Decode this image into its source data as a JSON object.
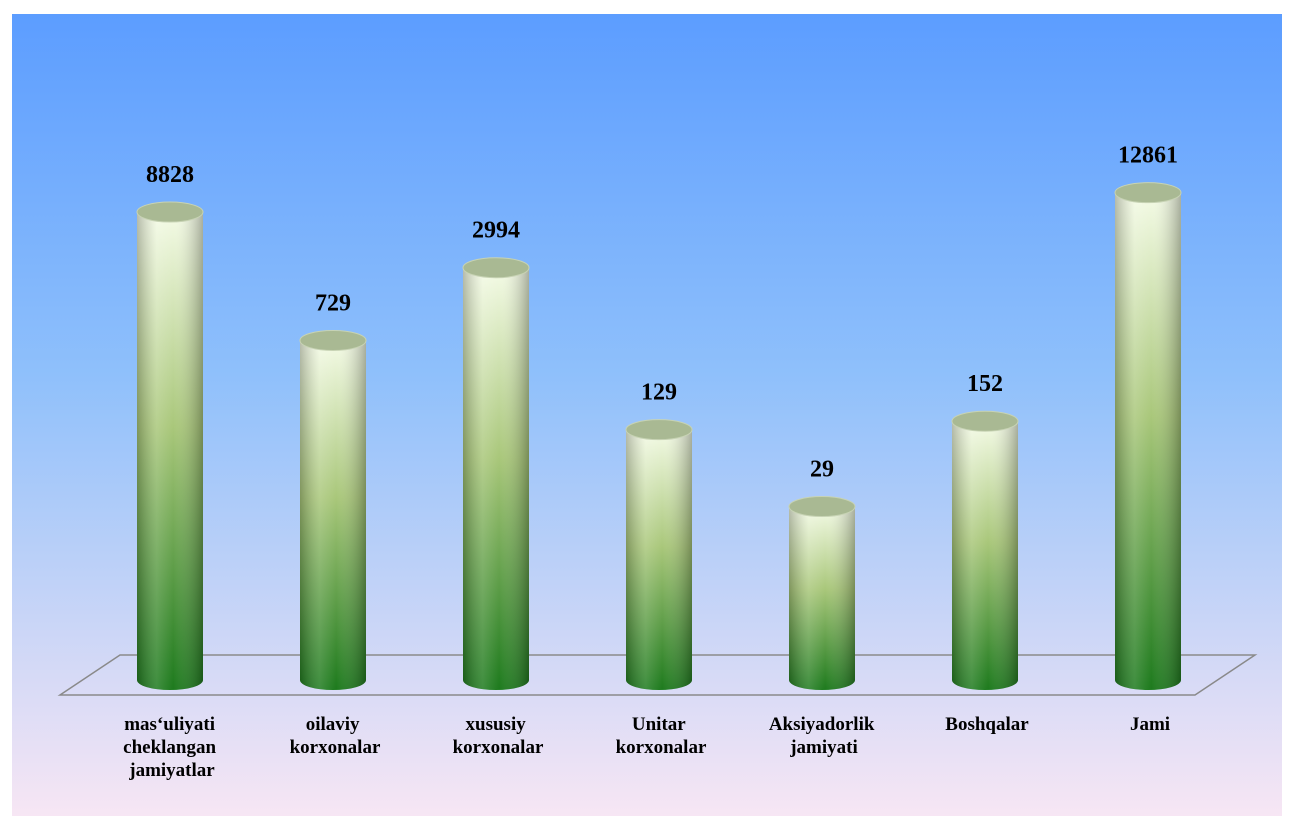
{
  "chart_data": {
    "type": "cylinder",
    "categories": [
      "mas‘uliyati cheklangan jamiyatlar",
      "oilaviy korxonalar",
      "xususiy korxonalar",
      "Unitar korxonalar",
      "Aksiyadorlik jamiyati",
      "Boshqalar",
      "Jami"
    ],
    "values": [
      8828,
      729,
      2994,
      129,
      29,
      152,
      12861
    ],
    "log_scale": true,
    "ylim": [
      1,
      100000
    ],
    "grid": false
  }
}
